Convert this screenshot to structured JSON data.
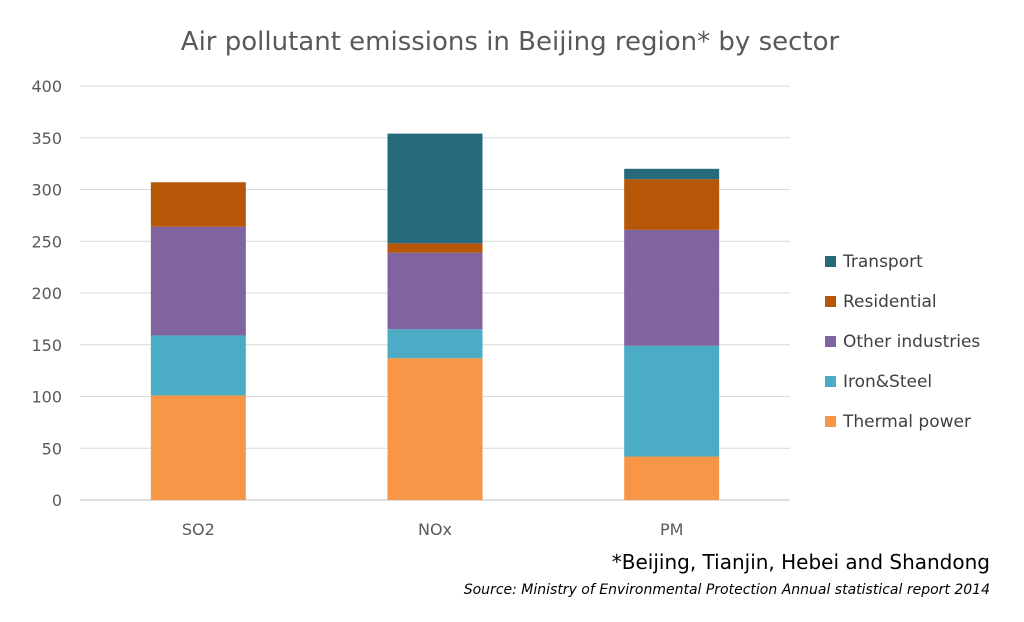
{
  "chart_data": {
    "type": "bar",
    "stacked": true,
    "title": "Air pollutant emissions in Beijing region* by sector",
    "categories": [
      "SO2",
      "NOx",
      "PM"
    ],
    "ylim": [
      0,
      400
    ],
    "yticks": [
      0,
      50,
      100,
      150,
      200,
      250,
      300,
      350,
      400
    ],
    "grid": true,
    "legend_position": "right",
    "series": [
      {
        "name": "Thermal power",
        "color": "#F79646",
        "values": [
          101,
          137,
          42
        ]
      },
      {
        "name": "Iron&Steel",
        "color": "#4BACC6",
        "values": [
          58,
          28,
          107
        ]
      },
      {
        "name": "Other industries",
        "color": "#8064A2",
        "values": [
          105,
          74,
          112
        ]
      },
      {
        "name": "Residential",
        "color": "#B65708",
        "values": [
          43,
          9,
          49
        ]
      },
      {
        "name": "Transport",
        "color": "#276A7C",
        "values": [
          0,
          106,
          10
        ]
      }
    ]
  },
  "footnote": "*Beijing, Tianjin, Hebei and Shandong",
  "source": "Source: Ministry of Environmental Protection Annual statistical report 2014"
}
